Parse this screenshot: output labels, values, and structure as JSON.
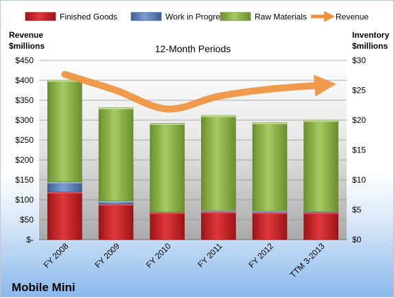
{
  "chart_data": {
    "type": "bar",
    "title": "12-Month Periods",
    "company": "Mobile Mini",
    "categories": [
      "FY 2008",
      "FY 2009",
      "FY 2010",
      "FY 2011",
      "FY 2012",
      "TTM 3-2013"
    ],
    "series": [
      {
        "name": "Finished Goods",
        "color": "#c0262b",
        "axis": "right",
        "values": [
          8.0,
          6.0,
          4.6,
          4.7,
          4.6,
          4.6
        ]
      },
      {
        "name": "Work in Progress",
        "color": "#5a7fb5",
        "axis": "right",
        "values": [
          1.7,
          0.5,
          0.0,
          0.2,
          0.2,
          0.1
        ]
      },
      {
        "name": "Raw Materials",
        "color": "#8cb24a",
        "axis": "right",
        "values": [
          17.0,
          15.6,
          14.9,
          15.9,
          14.8,
          15.3
        ]
      },
      {
        "name": "Revenue",
        "color": "#f0913a",
        "axis": "left",
        "type": "line",
        "values": [
          415,
          375,
          328,
          360,
          378,
          388
        ]
      }
    ],
    "y_left": {
      "label": "Revenue\n$millions",
      "ylim": [
        0,
        450
      ],
      "ticks": [
        0,
        50,
        100,
        150,
        200,
        250,
        300,
        350,
        400,
        450
      ],
      "tick_labels": [
        "$-",
        "$50",
        "$100",
        "$150",
        "$200",
        "$250",
        "$300",
        "$350",
        "$400",
        "$450"
      ]
    },
    "y_right": {
      "label": "Inventory\n$millions",
      "ylim": [
        0,
        30
      ],
      "ticks": [
        0,
        5,
        10,
        15,
        20,
        25,
        30
      ],
      "tick_labels": [
        "$0",
        "$5",
        "$10",
        "$15",
        "$20",
        "$25",
        "$30"
      ]
    },
    "grid": true,
    "legend": "top"
  }
}
